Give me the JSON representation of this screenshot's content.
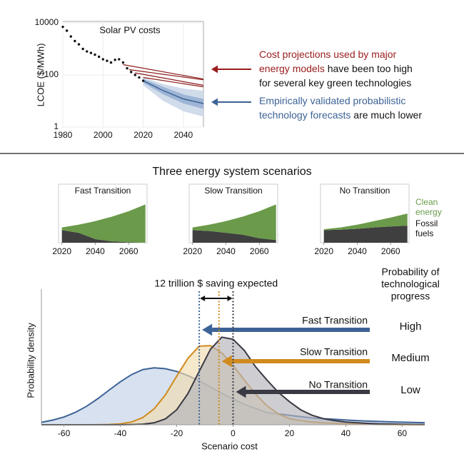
{
  "figure": {
    "scenarios_title": "Three energy system scenarios"
  },
  "chart_data": [
    {
      "type": "line",
      "title": "Solar PV costs",
      "y_label": "LCOE ($/MWh)",
      "log_y": true,
      "grid": true,
      "xlim": [
        1980,
        2050
      ],
      "xticks": [
        1980,
        2000,
        2020,
        2040
      ],
      "ylim": [
        1,
        10000
      ],
      "yticks": [
        1,
        100,
        10000
      ],
      "history": {
        "color": "#111111",
        "x": [
          1980,
          1982,
          1984,
          1986,
          1988,
          1990,
          1992,
          1994,
          1996,
          1998,
          2000,
          2002,
          2004,
          2006,
          2008,
          2010,
          2012,
          2014,
          2016,
          2018,
          2020
        ],
        "values": [
          7000,
          5000,
          3000,
          2000,
          1500,
          1000,
          800,
          700,
          600,
          500,
          400,
          350,
          300,
          380,
          400,
          300,
          180,
          130,
          100,
          80,
          60
        ]
      },
      "projections": {
        "color": "#8b1a1a",
        "lines": [
          {
            "x": [
              2010,
              2050
            ],
            "values": [
              250,
              70
            ]
          },
          {
            "x": [
              2013,
              2050
            ],
            "values": [
              160,
              65
            ]
          },
          {
            "x": [
              2016,
              2050
            ],
            "values": [
              120,
              40
            ]
          },
          {
            "x": [
              2020,
              2050
            ],
            "values": [
              80,
              35
            ]
          }
        ]
      },
      "forecast": {
        "x": [
          2020,
          2030,
          2040,
          2050
        ],
        "median": [
          60,
          25,
          12,
          8
        ],
        "median_color": "#3d6396",
        "bands": [
          {
            "low": [
              40,
              10,
              4,
              2.5
            ],
            "high": [
              80,
              45,
              30,
              25
            ],
            "color": "#c9d6e8"
          },
          {
            "low": [
              50,
              18,
              8,
              5
            ],
            "high": [
              70,
              35,
              18,
              12
            ],
            "color": "#95aed2"
          }
        ]
      },
      "annotations": [
        {
          "lines": [
            [
              {
                "text": "Cost projections used by major",
                "color": "#9b1c1c"
              }
            ],
            [
              {
                "text": "energy models",
                "color": "#9b1c1c"
              },
              {
                "text": " have been too high",
                "color": "#111111"
              }
            ],
            [
              {
                "text": "for several key green technologies",
                "color": "#111111"
              }
            ]
          ]
        },
        {
          "lines": [
            [
              {
                "text": "Empirically validated probabilistic",
                "color": "#3d6396"
              }
            ],
            [
              {
                "text": "technology forecasts",
                "color": "#3d6396"
              },
              {
                "text": " are much lower",
                "color": "#111111"
              }
            ]
          ]
        }
      ]
    },
    {
      "type": "area",
      "title": "Fast Transition",
      "xlim": [
        2018,
        2071
      ],
      "xticks": [
        2020,
        2040,
        2060
      ],
      "ylim": [
        0,
        100
      ],
      "x": [
        2020,
        2030,
        2040,
        2050,
        2060,
        2070
      ],
      "series": [
        {
          "name": "Fossil fuels",
          "color": "#3f3f3f",
          "values": [
            28,
            22,
            8,
            3,
            1,
            0
          ]
        },
        {
          "name": "Clean energy",
          "color": "#6a9a4a",
          "values": [
            6,
            18,
            40,
            55,
            69,
            85
          ]
        }
      ]
    },
    {
      "type": "area",
      "title": "Slow Transition",
      "xlim": [
        2018,
        2071
      ],
      "xticks": [
        2020,
        2040,
        2060
      ],
      "ylim": [
        0,
        100
      ],
      "x": [
        2020,
        2030,
        2040,
        2050,
        2060,
        2070
      ],
      "series": [
        {
          "name": "Fossil fuels",
          "color": "#3f3f3f",
          "values": [
            28,
            26,
            22,
            18,
            10,
            6
          ]
        },
        {
          "name": "Clean energy",
          "color": "#6a9a4a",
          "values": [
            6,
            14,
            26,
            40,
            60,
            79
          ]
        }
      ]
    },
    {
      "type": "area",
      "title": "No Transition",
      "xlim": [
        2018,
        2071
      ],
      "xticks": [
        2020,
        2040,
        2060
      ],
      "ylim": [
        0,
        100
      ],
      "x": [
        2020,
        2030,
        2040,
        2050,
        2060,
        2070
      ],
      "series": [
        {
          "name": "Fossil fuels",
          "color": "#3f3f3f",
          "values": [
            28,
            29,
            31,
            34,
            36,
            38
          ]
        },
        {
          "name": "Clean energy",
          "color": "#6a9a4a",
          "values": [
            2,
            5,
            9,
            14,
            20,
            27
          ]
        }
      ]
    },
    {
      "type": "density",
      "x_label": "Scenario cost",
      "y_label": "Probability density",
      "xlim": [
        -68,
        68
      ],
      "xticks": [
        -60,
        -40,
        -20,
        0,
        20,
        40,
        60
      ],
      "ylim": [
        0,
        100
      ],
      "saving_label": "12 trillion $ saving expected",
      "level_title": [
        "Probability of",
        "technological",
        "progress"
      ],
      "x": [
        -68,
        -64,
        -60,
        -56,
        -52,
        -48,
        -44,
        -40,
        -36,
        -32,
        -28,
        -24,
        -20,
        -16,
        -12,
        -8,
        -4,
        0,
        4,
        8,
        12,
        16,
        20,
        24,
        28,
        32,
        36,
        40,
        44,
        48,
        52,
        56,
        60,
        64,
        68
      ],
      "series": [
        {
          "name": "Fast Transition",
          "level": "High",
          "color": "#3d6396",
          "fill": "#c3d1e6",
          "mean": -12,
          "values": [
            1.8,
            3.4,
            5.7,
            9.1,
            13.6,
            19.2,
            25.5,
            31.7,
            37,
            40.7,
            42,
            41.3,
            39.3,
            36.2,
            32.3,
            27.8,
            23.2,
            19,
            15,
            12,
            9,
            8,
            7,
            6,
            5,
            4.5,
            4,
            3.5,
            3,
            2.7,
            2.4,
            2.1,
            1.9,
            1.7,
            1.5
          ]
        },
        {
          "name": "Slow Transition",
          "level": "Medium",
          "color": "#d08a1e",
          "fill": "#f1dcae",
          "mean": -5,
          "values": [
            0,
            0,
            0,
            0,
            0,
            0.05,
            0.2,
            0.7,
            2,
            5.3,
            11.7,
            22,
            35.8,
            49,
            58,
            58.3,
            53,
            43.8,
            33,
            22.6,
            14,
            8,
            4.5,
            3,
            2,
            1.4,
            1,
            0.7,
            0.5,
            0.3,
            0.2,
            0.1,
            0,
            0,
            0
          ]
        },
        {
          "name": "No Transition",
          "level": "Low",
          "color": "#3a3a44",
          "fill": "#b4b4ba",
          "mean": 0,
          "values": [
            0,
            0,
            0,
            0,
            0,
            0,
            0,
            0,
            0.08,
            0.36,
            1.4,
            4.3,
            11,
            23,
            39.4,
            55.7,
            64.6,
            63,
            54.8,
            42.7,
            33,
            24,
            17,
            11,
            7,
            4.5,
            3,
            2,
            1.4,
            1,
            0.7,
            0.5,
            0.3,
            0.2,
            0.1
          ]
        }
      ]
    }
  ]
}
